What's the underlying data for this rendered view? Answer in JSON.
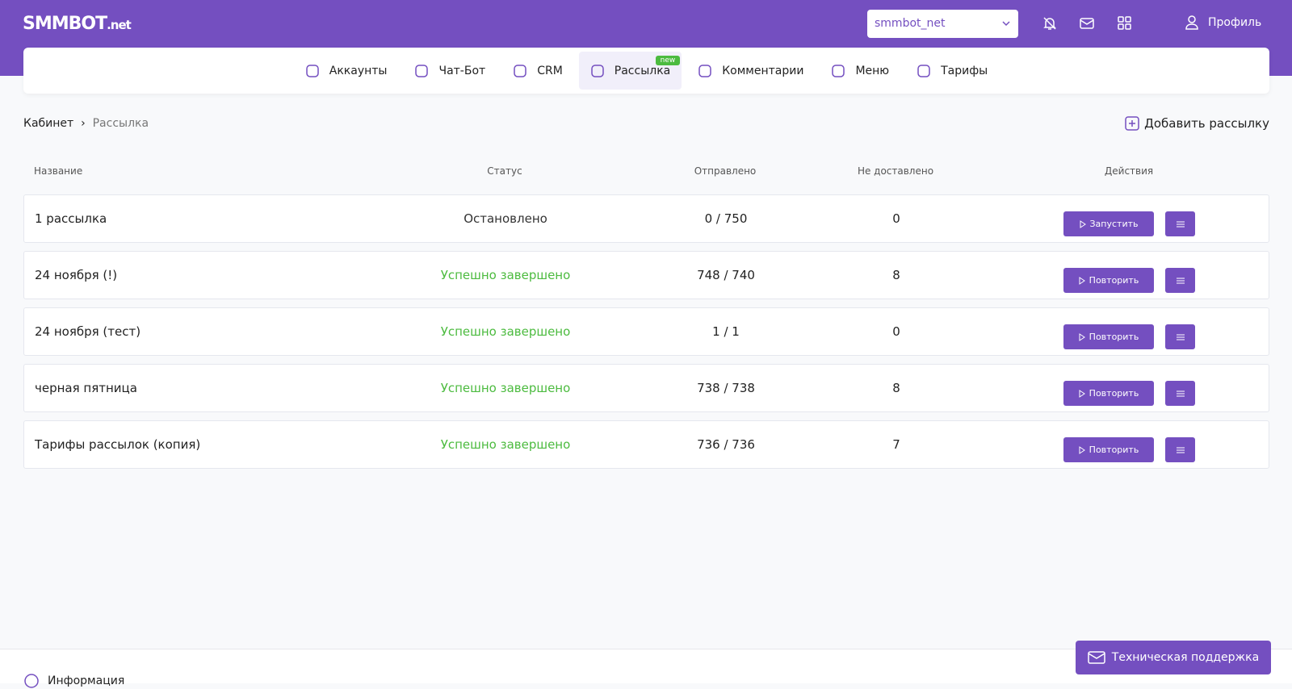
{
  "header": {
    "logo": "SMMBOT",
    "logo_suffix": ".net",
    "account": "smmbot_net",
    "profile": "Профиль"
  },
  "nav": {
    "items": [
      "Аккаунты",
      "Чат-Бот",
      "CRM",
      "Рассылка",
      "Комментарии",
      "Меню",
      "Тарифы"
    ],
    "badge": "new"
  },
  "breadcrumb": {
    "root": "Кабинет",
    "current": "Рассылка"
  },
  "add_button": "Добавить рассылку",
  "table": {
    "columns": [
      "Название",
      "Статус",
      "Отправлено",
      "Не доставлено",
      "Действия"
    ],
    "rows": [
      {
        "name": "1 рассылка",
        "status": "Остановлено",
        "status_color": "#333333",
        "sent": "0 / 750",
        "undelivered": "0",
        "action": "Запустить"
      },
      {
        "name": "24 ноября (!)",
        "status": "Успешно завершено",
        "status_color": "#4cbb3f",
        "sent": "748 / 740",
        "undelivered": "8",
        "action": "Повторить"
      },
      {
        "name": "24 ноября (тест)",
        "status": "Успешно завершено",
        "status_color": "#4cbb3f",
        "sent": "1 / 1",
        "undelivered": "0",
        "action": "Повторить"
      },
      {
        "name": "черная пятница",
        "status": "Успешно завершено",
        "status_color": "#4cbb3f",
        "sent": "738 / 738",
        "undelivered": "8",
        "action": "Повторить"
      },
      {
        "name": "Тарифы рассылок (копия)",
        "status": "Успешно завершено",
        "status_color": "#4cbb3f",
        "sent": "736 / 736",
        "undelivered": "7",
        "action": "Повторить"
      }
    ]
  },
  "footer": {
    "info": "Информация",
    "support": "Техническая поддержка"
  }
}
